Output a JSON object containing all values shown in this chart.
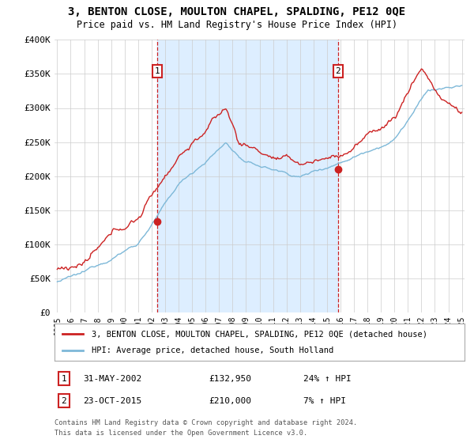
{
  "title": "3, BENTON CLOSE, MOULTON CHAPEL, SPALDING, PE12 0QE",
  "subtitle": "Price paid vs. HM Land Registry's House Price Index (HPI)",
  "ylim": [
    0,
    400000
  ],
  "yticks": [
    0,
    50000,
    100000,
    150000,
    200000,
    250000,
    300000,
    350000,
    400000
  ],
  "ytick_labels": [
    "£0",
    "£50K",
    "£100K",
    "£150K",
    "£200K",
    "£250K",
    "£300K",
    "£350K",
    "£400K"
  ],
  "hpi_color": "#7db8d8",
  "price_color": "#cc2222",
  "shade_color": "#ddeeff",
  "marker1_year": 2002.42,
  "marker1_value": 132950,
  "marker1_label": "1",
  "marker1_date": "31-MAY-2002",
  "marker1_price": "£132,950",
  "marker1_pct": "24% ↑ HPI",
  "marker2_year": 2015.81,
  "marker2_value": 210000,
  "marker2_label": "2",
  "marker2_date": "23-OCT-2015",
  "marker2_price": "£210,000",
  "marker2_pct": "7% ↑ HPI",
  "legend_line1": "3, BENTON CLOSE, MOULTON CHAPEL, SPALDING, PE12 0QE (detached house)",
  "legend_line2": "HPI: Average price, detached house, South Holland",
  "footer1": "Contains HM Land Registry data © Crown copyright and database right 2024.",
  "footer2": "This data is licensed under the Open Government Licence v3.0.",
  "background_color": "#ffffff",
  "grid_color": "#cccccc",
  "start_year": 1995,
  "end_year": 2025
}
